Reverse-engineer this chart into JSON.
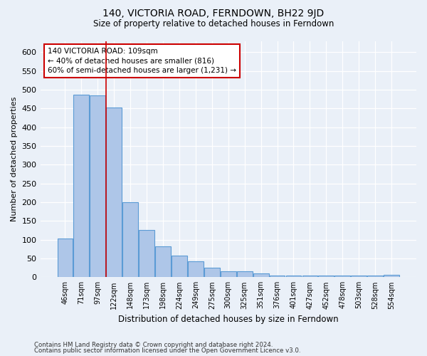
{
  "title": "140, VICTORIA ROAD, FERNDOWN, BH22 9JD",
  "subtitle": "Size of property relative to detached houses in Ferndown",
  "xlabel": "Distribution of detached houses by size in Ferndown",
  "ylabel": "Number of detached properties",
  "footer_line1": "Contains HM Land Registry data © Crown copyright and database right 2024.",
  "footer_line2": "Contains public sector information licensed under the Open Government Licence v3.0.",
  "categories": [
    "46sqm",
    "71sqm",
    "97sqm",
    "122sqm",
    "148sqm",
    "173sqm",
    "198sqm",
    "224sqm",
    "249sqm",
    "275sqm",
    "300sqm",
    "325sqm",
    "351sqm",
    "376sqm",
    "401sqm",
    "427sqm",
    "452sqm",
    "478sqm",
    "503sqm",
    "528sqm",
    "554sqm"
  ],
  "values": [
    103,
    487,
    485,
    452,
    200,
    125,
    82,
    57,
    42,
    25,
    15,
    15,
    10,
    5,
    5,
    5,
    5,
    5,
    5,
    5,
    7
  ],
  "bar_color": "#aec6e8",
  "bar_edge_color": "#5b9bd5",
  "bg_color": "#eaf0f8",
  "grid_color": "#ffffff",
  "red_line_x": 2.5,
  "annotation_text1": "140 VICTORIA ROAD: 109sqm",
  "annotation_text2": "← 40% of detached houses are smaller (816)",
  "annotation_text3": "60% of semi-detached houses are larger (1,231) →",
  "annotation_box_facecolor": "#ffffff",
  "annotation_box_edgecolor": "#cc0000",
  "red_line_color": "#cc0000",
  "ylim": [
    0,
    630
  ],
  "yticks": [
    0,
    50,
    100,
    150,
    200,
    250,
    300,
    350,
    400,
    450,
    500,
    550,
    600
  ]
}
